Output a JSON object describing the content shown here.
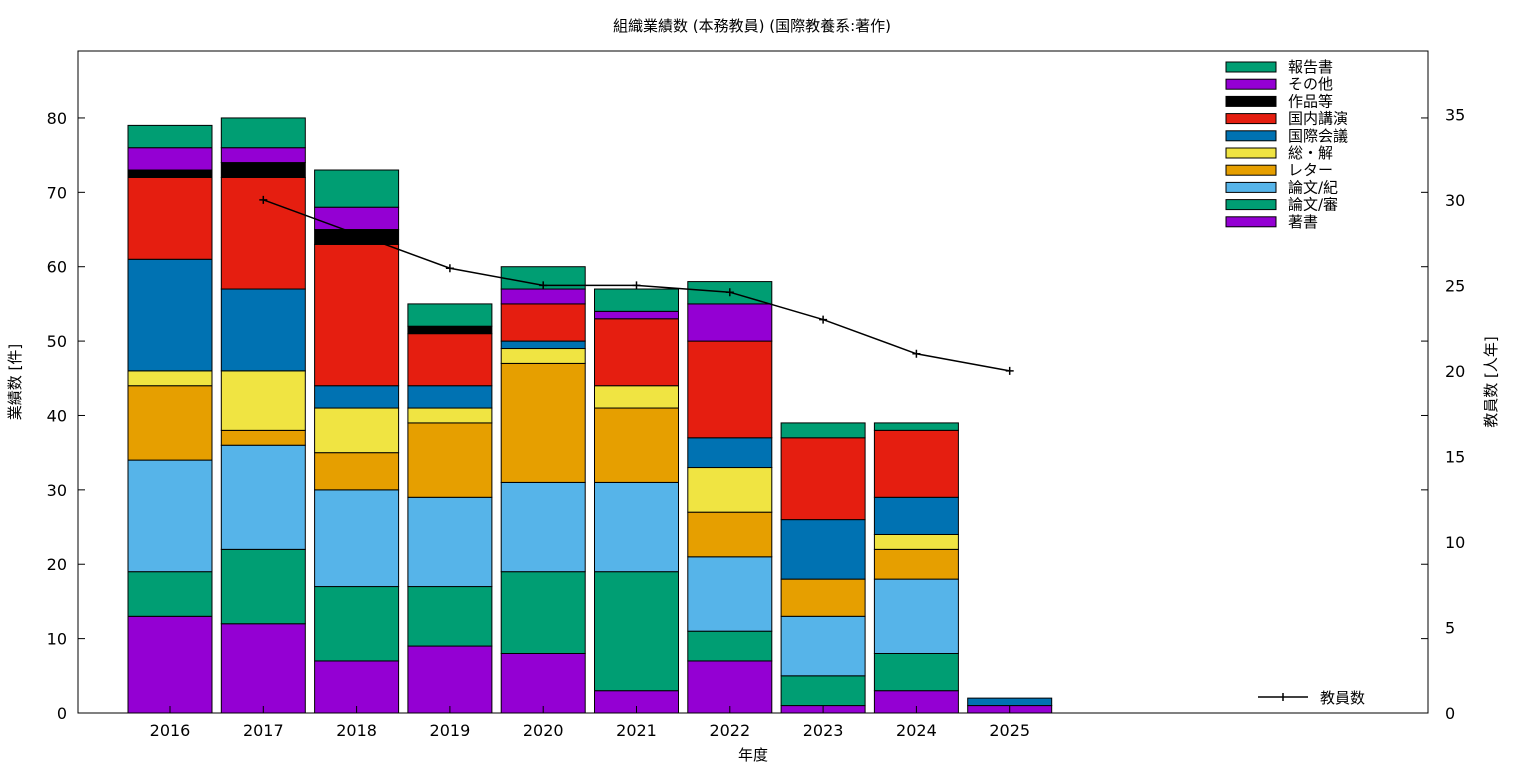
{
  "chart_data": {
    "type": "bar",
    "title": "組織業績数 (本務教員) (国際教養系:著作)",
    "xlabel": "年度",
    "ylabel": "業績数 [件]",
    "y2label": "教員数 [人年]",
    "categories": [
      "2016",
      "2017",
      "2018",
      "2019",
      "2020",
      "2021",
      "2022",
      "2023",
      "2024",
      "2025"
    ],
    "ylim": [
      0,
      89
    ],
    "y2lim": [
      0,
      38.7
    ],
    "yticks": [
      "0",
      "10",
      "20",
      "30",
      "40",
      "50",
      "60",
      "70",
      "80"
    ],
    "y2ticks": [
      "0",
      "5",
      "10",
      "15",
      "20",
      "25",
      "30",
      "35"
    ],
    "legend_position": "top-right",
    "stacked": true,
    "series": [
      {
        "name": "著書",
        "color": "#9400d3",
        "values": [
          13,
          12,
          7,
          9,
          8,
          3,
          7,
          1,
          3,
          1
        ]
      },
      {
        "name": "論文/審",
        "color": "#009e73",
        "values": [
          6,
          10,
          10,
          8,
          11,
          16,
          4,
          4,
          5,
          0
        ]
      },
      {
        "name": "論文/紀",
        "color": "#56b4e9",
        "values": [
          15,
          14,
          13,
          12,
          12,
          12,
          10,
          8,
          10,
          0
        ]
      },
      {
        "name": "レター",
        "color": "#e69f00",
        "values": [
          10,
          2,
          5,
          10,
          16,
          10,
          6,
          5,
          4,
          0
        ]
      },
      {
        "name": "総・解",
        "color": "#f0e442",
        "values": [
          2,
          8,
          6,
          2,
          2,
          3,
          6,
          0,
          2,
          0
        ]
      },
      {
        "name": "国際会議",
        "color": "#0072b2",
        "values": [
          15,
          11,
          3,
          3,
          1,
          0,
          4,
          8,
          5,
          1
        ]
      },
      {
        "name": "国内講演",
        "color": "#e51e10",
        "values": [
          11,
          15,
          19,
          7,
          5,
          9,
          13,
          11,
          9,
          0
        ]
      },
      {
        "name": "作品等",
        "color": "#000000",
        "values": [
          1,
          2,
          2,
          1,
          0,
          0,
          0,
          0,
          0,
          0
        ]
      },
      {
        "name": "その他",
        "color": "#9400d3",
        "values": [
          3,
          2,
          3,
          0,
          2,
          1,
          5,
          0,
          0,
          0
        ]
      },
      {
        "name": "報告書",
        "color": "#009e73",
        "values": [
          3,
          4,
          5,
          3,
          3,
          3,
          3,
          2,
          1,
          0
        ]
      }
    ],
    "line_series": {
      "name": "教員数",
      "color": "#000000",
      "x": [
        "2017",
        "2018",
        "2019",
        "2020",
        "2021",
        "2022",
        "2023",
        "2024",
        "2025"
      ],
      "values": [
        30,
        28,
        26,
        25,
        25,
        24.6,
        23,
        21,
        20
      ]
    }
  }
}
